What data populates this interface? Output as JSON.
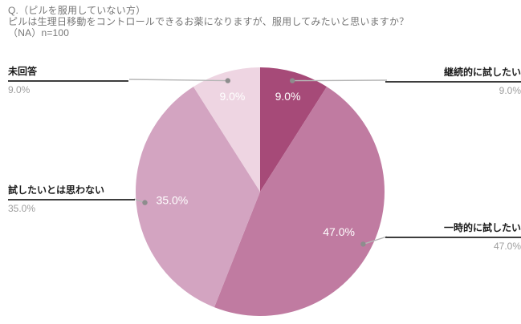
{
  "title": {
    "line1": "Q.（ピルを服用していない方）",
    "line2": "ピルは生理日移動をコントロールできるお薬になりますが、服用してみたいと思いますか？",
    "line3": "（NA）n=100"
  },
  "chart_data": {
    "type": "pie",
    "title": "Q.（ピルを服用していない方）ピルは生理日移動をコントロールできるお薬になりますが、服用してみたいと思いますか？（NA）n=100",
    "sample_note": "（NA）n=100",
    "n": 100,
    "categories": [
      "継続的に試したい",
      "一時的に試したい",
      "試したいとは思わない",
      "未回答"
    ],
    "values": [
      9.0,
      47.0,
      35.0,
      9.0
    ],
    "slice_value_labels": [
      "9.0%",
      "47.0%",
      "35.0%",
      "9.0%"
    ],
    "colors": [
      "#a64a78",
      "#c07ba1",
      "#d3a4c1",
      "#eed5e2"
    ],
    "slice_label_color": "#ffffff",
    "leader_line_color": "#b6b6b6",
    "leader_dot_color": "#8d8d8d",
    "start_angle_deg": 0,
    "direction": "clockwise",
    "legend_position": "labeled-callouts",
    "grid": false
  },
  "callouts": [
    {
      "label": "継続的に試したい",
      "value": "9.0%"
    },
    {
      "label": "一時的に試したい",
      "value": "47.0%"
    },
    {
      "label": "試したいとは思わない",
      "value": "35.0%"
    },
    {
      "label": "未回答",
      "value": "9.0%"
    }
  ]
}
